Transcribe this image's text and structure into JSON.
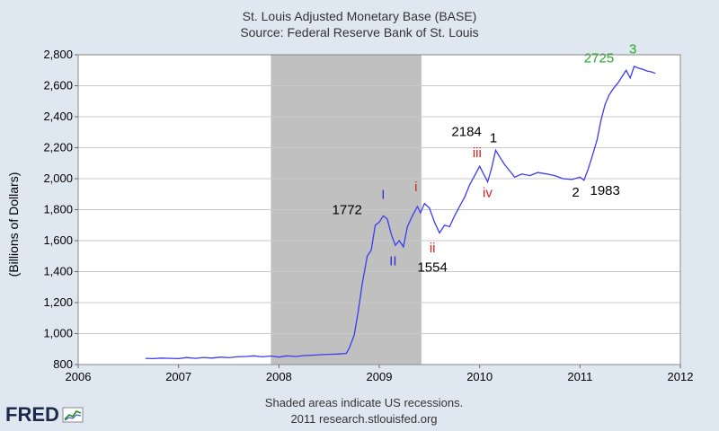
{
  "chart_data": {
    "type": "line",
    "title": "St. Louis Adjusted Monetary Base (BASE)",
    "subtitle": "Source: Federal Reserve Bank of St. Louis",
    "ylabel": "(Billions of Dollars)",
    "xlabel": "",
    "xlim": [
      2006,
      2012
    ],
    "ylim": [
      800,
      2800
    ],
    "x_ticks": [
      2006,
      2007,
      2008,
      2009,
      2010,
      2011,
      2012
    ],
    "x_tick_labels": [
      "2006",
      "2007",
      "2008",
      "2009",
      "2010",
      "2011",
      "2012"
    ],
    "y_ticks": [
      800,
      1000,
      1200,
      1400,
      1600,
      1800,
      2000,
      2200,
      2400,
      2600,
      2800
    ],
    "y_tick_labels": [
      "800",
      "1,000",
      "1,200",
      "1,400",
      "1,600",
      "1,800",
      "2,000",
      "2,200",
      "2,400",
      "2,600",
      "2,800"
    ],
    "grid": true,
    "recession": {
      "start": 2007.92,
      "end": 2009.42,
      "color": "#c0c0c0"
    },
    "series_color": "#3b3bf0",
    "series": [
      {
        "points": [
          [
            2006.67,
            840
          ],
          [
            2006.75,
            838
          ],
          [
            2006.83,
            842
          ],
          [
            2006.92,
            840
          ],
          [
            2007.0,
            838
          ],
          [
            2007.08,
            845
          ],
          [
            2007.17,
            840
          ],
          [
            2007.25,
            846
          ],
          [
            2007.33,
            842
          ],
          [
            2007.42,
            848
          ],
          [
            2007.5,
            844
          ],
          [
            2007.58,
            850
          ],
          [
            2007.67,
            852
          ],
          [
            2007.75,
            856
          ],
          [
            2007.83,
            850
          ],
          [
            2007.92,
            855
          ],
          [
            2008.0,
            848
          ],
          [
            2008.08,
            856
          ],
          [
            2008.17,
            852
          ],
          [
            2008.25,
            858
          ],
          [
            2008.33,
            860
          ],
          [
            2008.42,
            864
          ],
          [
            2008.5,
            866
          ],
          [
            2008.58,
            868
          ],
          [
            2008.67,
            872
          ],
          [
            2008.7,
            905
          ],
          [
            2008.75,
            990
          ],
          [
            2008.79,
            1140
          ],
          [
            2008.83,
            1320
          ],
          [
            2008.88,
            1500
          ],
          [
            2008.92,
            1540
          ],
          [
            2008.96,
            1700
          ],
          [
            2009.0,
            1720
          ],
          [
            2009.04,
            1760
          ],
          [
            2009.08,
            1740
          ],
          [
            2009.12,
            1640
          ],
          [
            2009.16,
            1570
          ],
          [
            2009.2,
            1600
          ],
          [
            2009.24,
            1560
          ],
          [
            2009.28,
            1690
          ],
          [
            2009.33,
            1760
          ],
          [
            2009.38,
            1820
          ],
          [
            2009.41,
            1780
          ],
          [
            2009.45,
            1840
          ],
          [
            2009.5,
            1810
          ],
          [
            2009.55,
            1720
          ],
          [
            2009.6,
            1650
          ],
          [
            2009.65,
            1700
          ],
          [
            2009.7,
            1690
          ],
          [
            2009.75,
            1760
          ],
          [
            2009.8,
            1820
          ],
          [
            2009.85,
            1880
          ],
          [
            2009.9,
            1960
          ],
          [
            2009.95,
            2020
          ],
          [
            2010.0,
            2080
          ],
          [
            2010.04,
            2030
          ],
          [
            2010.08,
            1980
          ],
          [
            2010.12,
            2070
          ],
          [
            2010.16,
            2184
          ],
          [
            2010.2,
            2140
          ],
          [
            2010.25,
            2090
          ],
          [
            2010.3,
            2050
          ],
          [
            2010.35,
            2010
          ],
          [
            2010.42,
            2030
          ],
          [
            2010.5,
            2020
          ],
          [
            2010.58,
            2040
          ],
          [
            2010.67,
            2030
          ],
          [
            2010.75,
            2020
          ],
          [
            2010.83,
            2000
          ],
          [
            2010.92,
            1995
          ],
          [
            2011.0,
            2010
          ],
          [
            2011.04,
            1990
          ],
          [
            2011.08,
            2060
          ],
          [
            2011.12,
            2140
          ],
          [
            2011.17,
            2250
          ],
          [
            2011.21,
            2380
          ],
          [
            2011.25,
            2480
          ],
          [
            2011.29,
            2540
          ],
          [
            2011.33,
            2580
          ],
          [
            2011.38,
            2620
          ],
          [
            2011.42,
            2660
          ],
          [
            2011.46,
            2700
          ],
          [
            2011.5,
            2650
          ],
          [
            2011.54,
            2725
          ],
          [
            2011.58,
            2715
          ],
          [
            2011.63,
            2705
          ],
          [
            2011.67,
            2695
          ],
          [
            2011.71,
            2690
          ],
          [
            2011.75,
            2680
          ]
        ]
      }
    ],
    "annotations": [
      {
        "text": "1772",
        "x": 2008.53,
        "y": 1770,
        "color": "#000000"
      },
      {
        "text": "I",
        "x": 2009.02,
        "y": 1870,
        "color": "#3030d0"
      },
      {
        "text": "II",
        "x": 2009.1,
        "y": 1440,
        "color": "#3030d0"
      },
      {
        "text": "1554",
        "x": 2009.38,
        "y": 1400,
        "color": "#000000"
      },
      {
        "text": "i",
        "x": 2009.35,
        "y": 1920,
        "color": "#cc2222"
      },
      {
        "text": "ii",
        "x": 2009.5,
        "y": 1525,
        "color": "#cc2222"
      },
      {
        "text": "2184",
        "x": 2009.72,
        "y": 2275,
        "color": "#000000"
      },
      {
        "text": "iii",
        "x": 2009.93,
        "y": 2140,
        "color": "#cc2222"
      },
      {
        "text": "1",
        "x": 2010.1,
        "y": 2235,
        "color": "#000000"
      },
      {
        "text": "iv",
        "x": 2010.03,
        "y": 1880,
        "color": "#cc2222"
      },
      {
        "text": "2",
        "x": 2010.92,
        "y": 1885,
        "color": "#000000"
      },
      {
        "text": "1983",
        "x": 2011.1,
        "y": 1895,
        "color": "#000000"
      },
      {
        "text": "2725",
        "x": 2011.04,
        "y": 2750,
        "color": "#22aa22"
      },
      {
        "text": "3",
        "x": 2011.49,
        "y": 2810,
        "color": "#22aa22"
      }
    ]
  },
  "footer": {
    "line1": "Shaded areas indicate US recessions.",
    "line2": "2011 research.stlouisfed.org"
  },
  "logo": {
    "text": "FRED",
    "icon": "fred-chart-icon"
  }
}
